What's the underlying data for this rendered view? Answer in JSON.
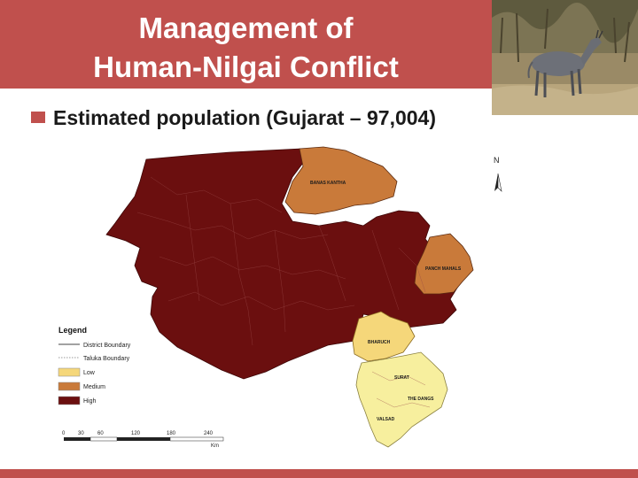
{
  "title": {
    "line1": "Management of",
    "line2": "Human-Nilgai Conflict"
  },
  "bullet": {
    "text": "Estimated population (Gujarat – 97,004)"
  },
  "photo": {
    "subject": "nilgai"
  },
  "map": {
    "north_label": "N",
    "districts": {
      "banaskantha": "BANAS KANTHA",
      "panchmahals": "PANCH MAHALS",
      "bharuch": "BHARUCH",
      "surat": "SURAT",
      "dangs": "THE DANGS",
      "valsad": "VALSAD"
    },
    "legend": {
      "title": "Legend",
      "items": [
        {
          "label": "District Boundary",
          "swatch": "line"
        },
        {
          "label": "Taluka Boundary",
          "swatch": "dotted"
        },
        {
          "label": "Low",
          "swatch": "#f5d77a"
        },
        {
          "label": "Medium",
          "swatch": "#c97a3a"
        },
        {
          "label": "High",
          "swatch": "#6b0f0f"
        }
      ]
    },
    "scale": {
      "ticks": [
        "0",
        "30",
        "60",
        "120",
        "180",
        "240"
      ],
      "unit": "Km"
    },
    "colors": {
      "high": "#6b0f0f",
      "medium": "#c97a3a",
      "low": "#f5d77a",
      "lowest": "#f7ef9e"
    }
  },
  "theme": {
    "accent": "#c0504d"
  }
}
